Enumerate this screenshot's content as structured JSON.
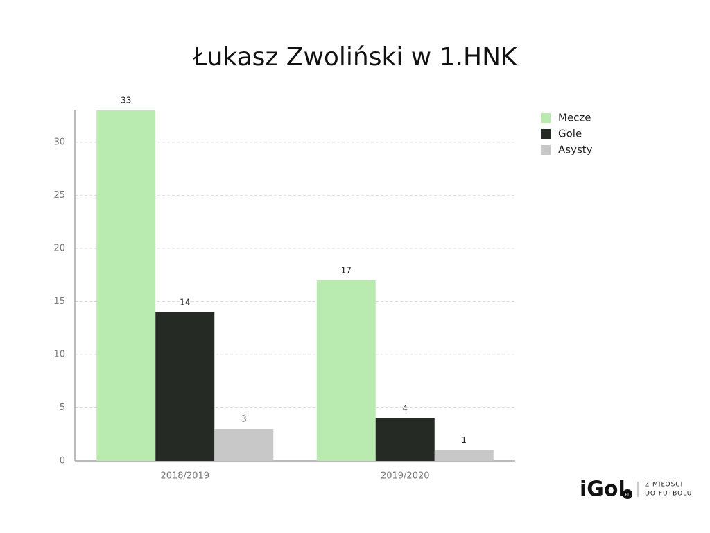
{
  "chart_data": {
    "type": "bar",
    "title": "Łukasz Zwoliński w 1.HNK",
    "categories": [
      "2018/2019",
      "2019/2020"
    ],
    "series": [
      {
        "name": "Mecze",
        "color": "#b9ebb0",
        "values": [
          33,
          17
        ]
      },
      {
        "name": "Gole",
        "color": "#262a24",
        "values": [
          14,
          4
        ]
      },
      {
        "name": "Asysty",
        "color": "#c8c8c8",
        "values": [
          3,
          1
        ]
      }
    ],
    "ylim": [
      0,
      33
    ],
    "yticks": [
      0,
      5,
      10,
      15,
      20,
      25,
      30
    ],
    "grid": true,
    "legend": "right",
    "logo": {
      "name": "iGol",
      "badge": "PL",
      "tagline": [
        "Z MIŁOŚCI",
        "DO FUTBOLU"
      ]
    }
  }
}
